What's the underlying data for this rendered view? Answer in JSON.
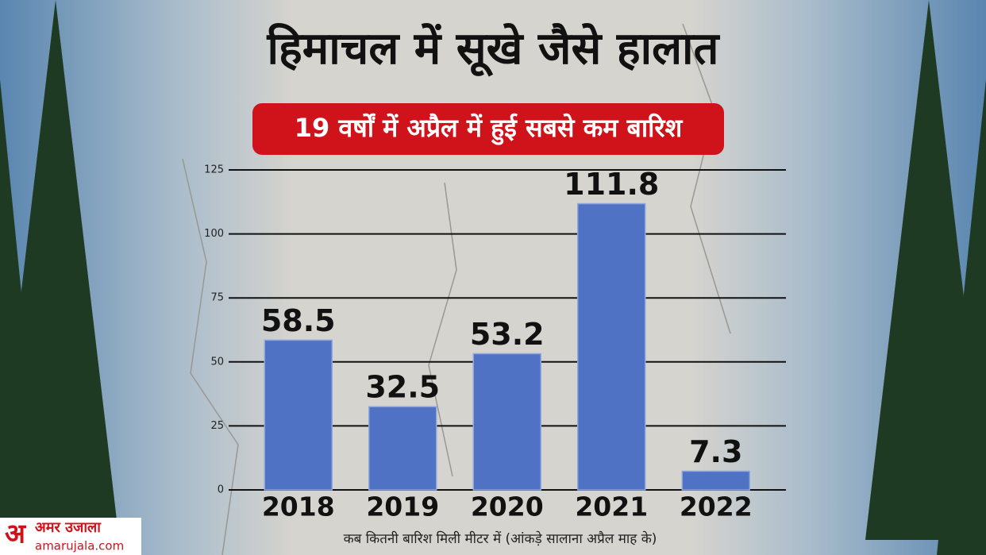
{
  "chart_data": {
    "type": "bar",
    "title": "हिमाचल में सूखे जैसे हालात",
    "subtitle": "19 वर्षों में अप्रैल में हुई सबसे कम बारिश",
    "x_label": "कब कितनी बारिश मिली मीटर में (आंकड़े सालाना अप्रैल माह के)",
    "categories": [
      "2018",
      "2019",
      "2020",
      "2021",
      "2022"
    ],
    "values": [
      58.5,
      32.5,
      53.2,
      111.8,
      7.3
    ],
    "color": "#4f72c4",
    "ylim": [
      0,
      125
    ],
    "yticks": [
      0,
      25,
      50,
      75,
      100,
      125
    ],
    "grid": true
  },
  "brand": {
    "name": "अमर उजाला",
    "site": "amarujala.com"
  }
}
